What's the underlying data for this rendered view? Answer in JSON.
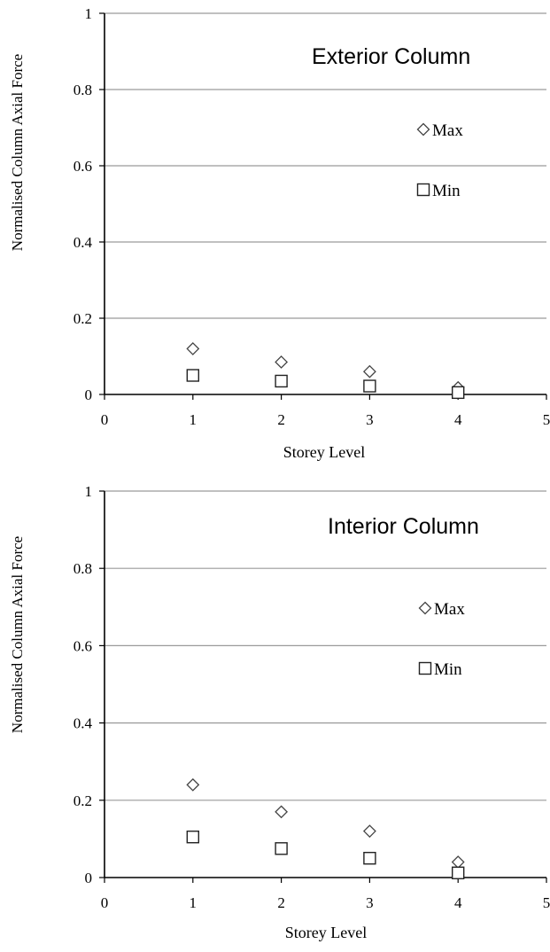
{
  "chart_data": [
    {
      "type": "scatter",
      "title": "Exterior Column",
      "xlabel": "Storey Level",
      "ylabel": "Normalised Column Axial Force",
      "xlim": [
        0,
        5
      ],
      "ylim": [
        0,
        1
      ],
      "x_ticks": [
        "0",
        "1",
        "2",
        "3",
        "4",
        "5"
      ],
      "y_ticks": [
        "0",
        "0.2",
        "0.4",
        "0.6",
        "0.8",
        "1"
      ],
      "grid": true,
      "legend_position": "right",
      "series": [
        {
          "name": "Max",
          "marker": "diamond",
          "x": [
            1,
            2,
            3,
            4
          ],
          "y": [
            0.12,
            0.085,
            0.06,
            0.018
          ]
        },
        {
          "name": "Min",
          "marker": "square",
          "x": [
            1,
            2,
            3,
            4
          ],
          "y": [
            0.05,
            0.035,
            0.022,
            0.005
          ]
        }
      ]
    },
    {
      "type": "scatter",
      "title": "Interior Column",
      "xlabel": "Storey Level",
      "ylabel": "Normalised Column Axial Force",
      "xlim": [
        0,
        5
      ],
      "ylim": [
        0,
        1
      ],
      "x_ticks": [
        "0",
        "1",
        "2",
        "3",
        "4",
        "5"
      ],
      "y_ticks": [
        "0",
        "0.2",
        "0.4",
        "0.6",
        "0.8",
        "1"
      ],
      "grid": true,
      "legend_position": "right",
      "series": [
        {
          "name": "Max",
          "marker": "diamond",
          "x": [
            1,
            2,
            3,
            4
          ],
          "y": [
            0.24,
            0.17,
            0.12,
            0.04
          ]
        },
        {
          "name": "Min",
          "marker": "square",
          "x": [
            1,
            2,
            3,
            4
          ],
          "y": [
            0.105,
            0.075,
            0.05,
            0.012
          ]
        }
      ]
    }
  ]
}
